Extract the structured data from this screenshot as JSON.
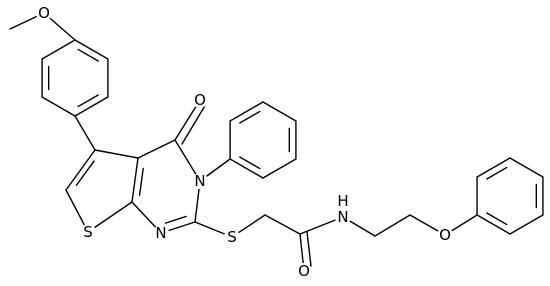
{
  "atoms": {
    "methoxy_o": "O",
    "carbonyl_o": "O",
    "n3": "N",
    "thiophene_s": "S",
    "n1": "N",
    "thioether_s": "S",
    "amide_o": "O",
    "amide_n": "N",
    "amide_h": "H",
    "ether_o": "O"
  }
}
